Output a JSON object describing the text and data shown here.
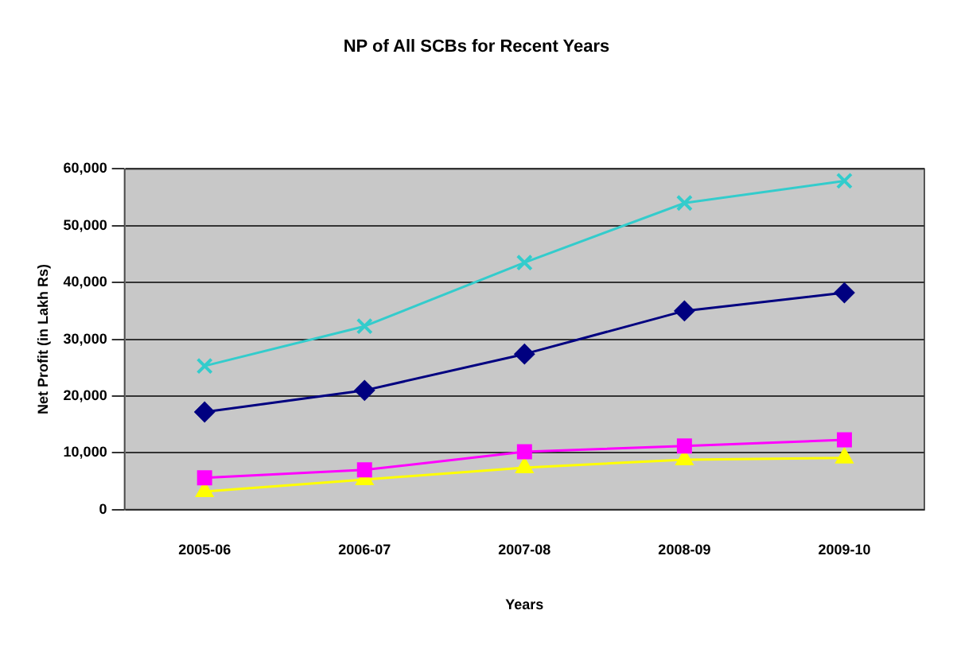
{
  "chart_data": {
    "type": "line",
    "title": "NP of All SCBs for Recent Years",
    "xlabel": "Years",
    "ylabel": "Net Profit (in Lakh Rs)",
    "categories": [
      "2005-06",
      "2006-07",
      "2007-08",
      "2008-09",
      "2009-10"
    ],
    "series": [
      {
        "color": "#33cccc",
        "marker": "cross",
        "values": [
          25300,
          32300,
          43500,
          54000,
          57900
        ]
      },
      {
        "color": "#000080",
        "marker": "diamond",
        "values": [
          17200,
          21000,
          27400,
          35000,
          38200
        ]
      },
      {
        "color": "#ff00ff",
        "marker": "square",
        "values": [
          5600,
          7000,
          10200,
          11200,
          12300
        ]
      },
      {
        "color": "#ffff00",
        "marker": "triangle",
        "values": [
          3200,
          5300,
          7400,
          8800,
          9100
        ]
      }
    ],
    "ylim": [
      0,
      60000
    ],
    "yticks": [
      {
        "value": 0,
        "label": "0"
      },
      {
        "value": 10000,
        "label": "10,000"
      },
      {
        "value": 20000,
        "label": "20,000"
      },
      {
        "value": 30000,
        "label": "30,000"
      },
      {
        "value": 40000,
        "label": "40,000"
      },
      {
        "value": 50000,
        "label": "50,000"
      },
      {
        "value": 60000,
        "label": "60,000"
      }
    ],
    "grid": "y",
    "legend": false
  }
}
